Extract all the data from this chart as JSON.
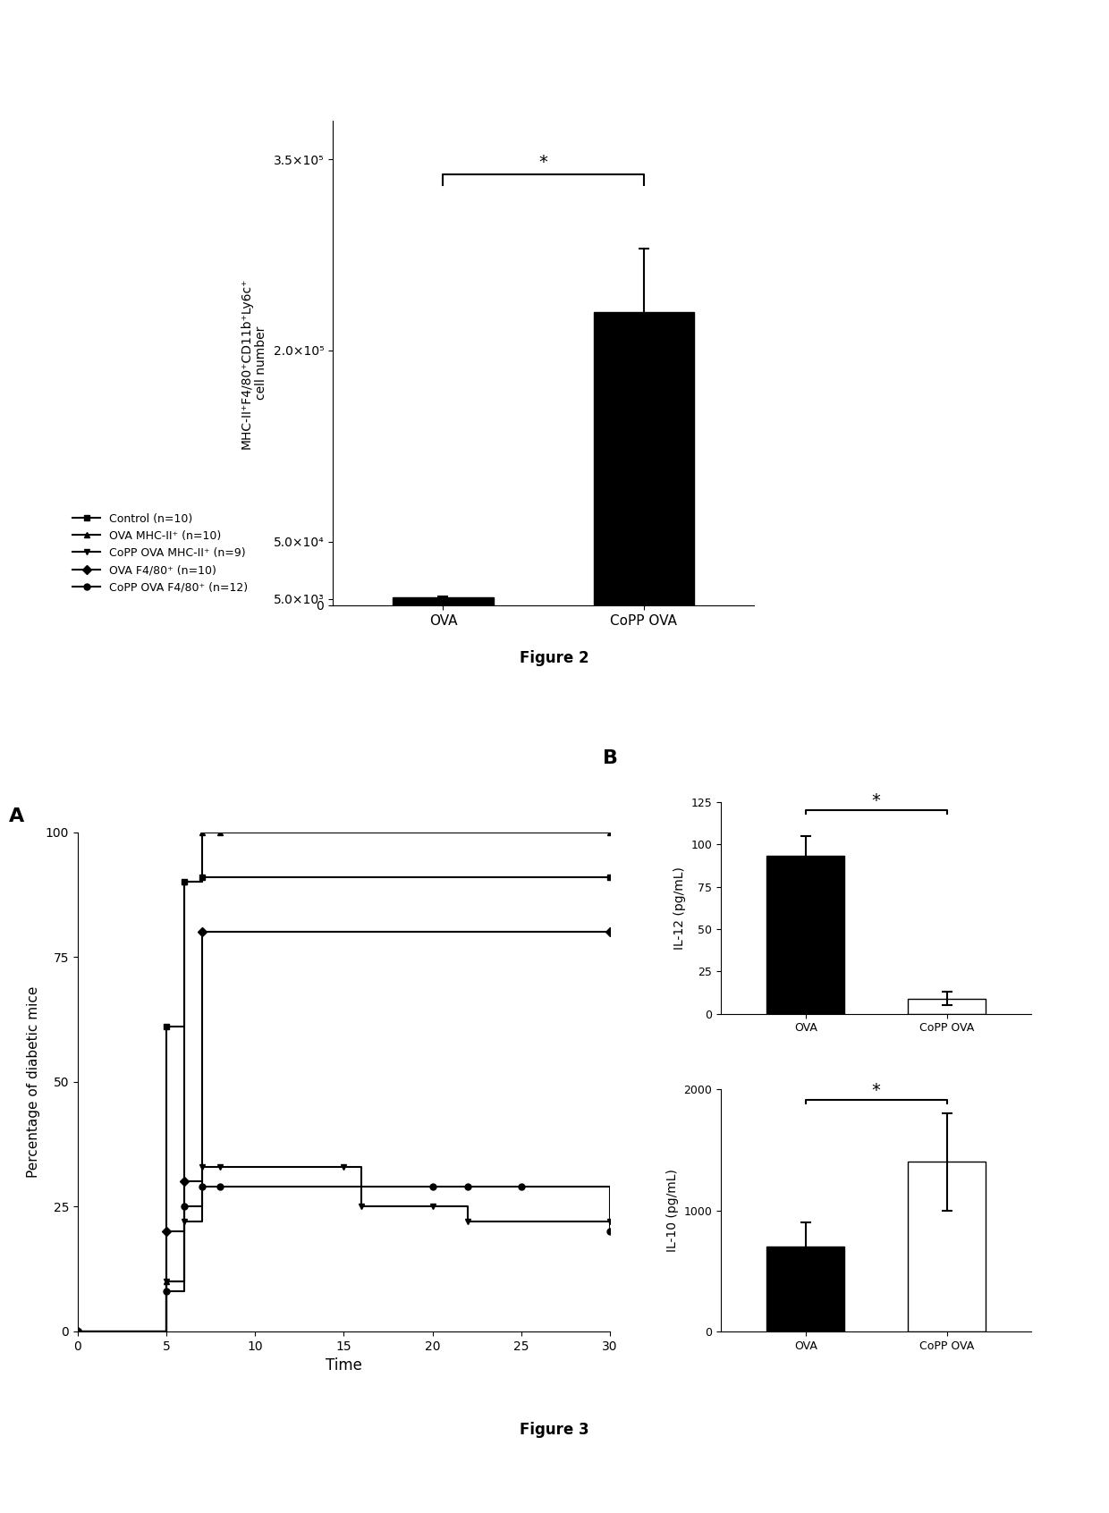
{
  "fig2": {
    "ylabel": "MHC-II⁺F4/80⁺CD11b⁺Ly6c⁺\ncell number",
    "categories": [
      "OVA",
      "CoPP OVA"
    ],
    "bar_values": [
      6000,
      230000
    ],
    "bar_errors": [
      800,
      50000
    ],
    "bar_color": "#000000",
    "ytick_vals": [
      0,
      5000,
      50000,
      200000,
      350000
    ],
    "ytick_labels": [
      "0",
      "5.0×10³",
      "5.0×10⁴",
      "2.0×10⁵",
      "3.5×10⁵"
    ],
    "ylim": [
      0,
      380000
    ],
    "sig_bracket_y": 330000,
    "sig_star": "*",
    "caption": "Figure 2"
  },
  "fig3a": {
    "panel_label": "A",
    "xlabel": "Time",
    "ylabel": "Percentage of diabetic mice",
    "xlim": [
      0,
      30
    ],
    "ylim": [
      0,
      100
    ],
    "xticks": [
      0,
      5,
      10,
      15,
      20,
      25,
      30
    ],
    "yticks": [
      0,
      25,
      50,
      75,
      100
    ],
    "lines": [
      {
        "label": "Control (n=10)",
        "marker": "s",
        "x": [
          0,
          5,
          6,
          7,
          30
        ],
        "y": [
          0,
          61,
          90,
          91,
          91
        ]
      },
      {
        "label": "OVA MHC-II⁺ (n=10)",
        "marker": "^",
        "x": [
          0,
          5,
          6,
          7,
          8,
          30
        ],
        "y": [
          0,
          10,
          90,
          100,
          100,
          100
        ]
      },
      {
        "label": "CoPP OVA MHC-II⁺ (n=9)",
        "marker": "v",
        "x": [
          0,
          5,
          6,
          7,
          8,
          15,
          16,
          20,
          22,
          30
        ],
        "y": [
          0,
          10,
          22,
          33,
          33,
          33,
          25,
          25,
          22,
          22
        ]
      },
      {
        "label": "OVA F4/80⁺ (n=10)",
        "marker": "D",
        "x": [
          0,
          5,
          6,
          7,
          30
        ],
        "y": [
          0,
          20,
          30,
          80,
          80
        ]
      },
      {
        "label": "CoPP OVA F4/80⁺ (n=12)",
        "marker": "o",
        "x": [
          0,
          5,
          6,
          7,
          8,
          20,
          22,
          25,
          30
        ],
        "y": [
          0,
          8,
          25,
          29,
          29,
          29,
          29,
          29,
          20
        ]
      }
    ]
  },
  "fig3b_il12": {
    "panel_label": "B",
    "ylabel": "IL-12 (pg/mL)",
    "categories": [
      "OVA",
      "CoPP OVA"
    ],
    "bar_values": [
      93,
      9
    ],
    "bar_errors": [
      12,
      4
    ],
    "bar_colors": [
      "#000000",
      "#ffffff"
    ],
    "ylim": [
      0,
      125
    ],
    "yticks": [
      0,
      25,
      50,
      75,
      100,
      125
    ],
    "sig_bracket_y": 118,
    "sig_star": "*"
  },
  "fig3b_il10": {
    "ylabel": "IL-10 (pg/mL)",
    "categories": [
      "OVA",
      "CoPP OVA"
    ],
    "bar_values": [
      700,
      1400
    ],
    "bar_errors": [
      200,
      400
    ],
    "bar_colors": [
      "#000000",
      "#ffffff"
    ],
    "ylim": [
      0,
      2000
    ],
    "yticks": [
      0,
      1000,
      2000
    ],
    "sig_bracket_y": 1880,
    "sig_star": "*"
  },
  "fig3_caption": "Figure 3",
  "background_color": "#ffffff"
}
